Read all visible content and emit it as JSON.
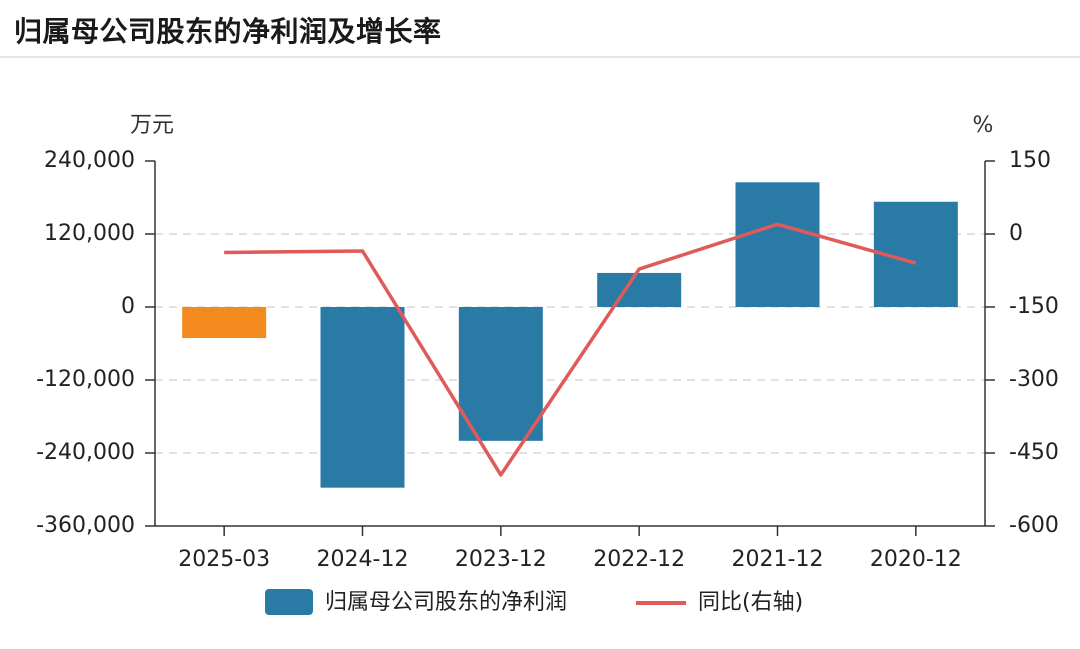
{
  "title": "归属母公司股东的净利润及增长率",
  "chart_data": {
    "type": "bar",
    "categories": [
      "2025-03",
      "2024-12",
      "2023-12",
      "2022-12",
      "2021-12",
      "2020-12"
    ],
    "series": [
      {
        "name": "归属母公司股东的净利润",
        "kind": "bar",
        "axis": "left",
        "values": [
          -51000,
          -297000,
          -220000,
          56000,
          205000,
          173000
        ],
        "colors": [
          "#f28a1e",
          "#2a7aa6",
          "#2a7aa6",
          "#2a7aa6",
          "#2a7aa6",
          "#2a7aa6"
        ]
      },
      {
        "name": "同比(右轴)",
        "kind": "line",
        "axis": "right",
        "values": [
          -38,
          -35,
          -495,
          -72,
          20,
          -60
        ],
        "color": "#e05a5a"
      }
    ],
    "left_axis": {
      "unit": "万元",
      "ylim": [
        -360000,
        240000
      ],
      "ticks": [
        240000,
        120000,
        0,
        -120000,
        -240000,
        -360000
      ],
      "tick_labels": [
        "240,000",
        "120,000",
        "0",
        "-120,000",
        "-240,000",
        "-360,000"
      ]
    },
    "right_axis": {
      "unit": "%",
      "ylim": [
        -600,
        150
      ],
      "ticks": [
        150,
        0,
        -150,
        -300,
        -450,
        -600
      ],
      "tick_labels": [
        "150",
        "0",
        "-150",
        "-300",
        "-450",
        "-600"
      ]
    },
    "grid": true,
    "legend_position": "bottom",
    "bar_legend_color": "#2a7aa6",
    "line_color": "#e05a5a"
  }
}
